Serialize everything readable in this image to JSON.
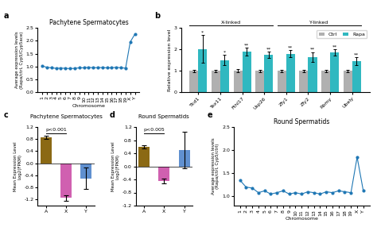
{
  "chart_data": [
    {
      "type": "line",
      "panel_label": "a",
      "title": "Pachytene Spermatocytes",
      "xlabel": "Chromosome",
      "ylabel": "Average expression levels\n(Rapa/ctrl, Cyp5/Cyp5ace)",
      "categories": [
        "1",
        "2",
        "3",
        "4",
        "5",
        "6",
        "7",
        "8",
        "9",
        "10",
        "11",
        "12",
        "13",
        "14",
        "15",
        "16",
        "17",
        "18",
        "19",
        "X",
        "Y"
      ],
      "values": [
        1.02,
        0.97,
        0.95,
        0.93,
        0.94,
        0.93,
        0.92,
        0.93,
        0.95,
        0.95,
        0.97,
        0.95,
        0.96,
        0.96,
        0.95,
        0.95,
        0.97,
        0.95,
        0.94,
        1.95,
        2.25
      ],
      "marker": "o",
      "ylim": [
        0.0,
        2.5
      ],
      "yticks": [
        {
          "value": 0.0,
          "label": "0.0"
        },
        0.5,
        {
          "value": 1.0,
          "label": "1.0"
        },
        1.5,
        {
          "value": 2.0,
          "label": "2.0"
        },
        2.5
      ]
    },
    {
      "type": "bar",
      "panel_label": "b",
      "ylabel": "Relative expression level",
      "categories": [
        "Tkd1",
        "Tex11",
        "Fthl17",
        "Usp26",
        "Zfy1",
        "Zfy2",
        "Rbmy",
        "Ubely"
      ],
      "series": [
        {
          "name": "Ctrl",
          "color": "#b0b0b0",
          "values": [
            1.0,
            1.0,
            1.0,
            1.0,
            1.0,
            1.0,
            1.0,
            1.0
          ],
          "errors": [
            0.05,
            0.05,
            0.07,
            0.05,
            0.05,
            0.05,
            0.05,
            0.05
          ]
        },
        {
          "name": "Rapa",
          "color": "#30b8c0",
          "values": [
            2.02,
            1.5,
            1.9,
            1.75,
            1.8,
            1.65,
            1.85,
            1.45
          ],
          "errors": [
            0.65,
            0.25,
            0.18,
            0.15,
            0.15,
            0.22,
            0.15,
            0.18
          ],
          "significance": [
            "*",
            "*",
            "**",
            "**",
            "**",
            "**",
            "**",
            "**"
          ]
        }
      ],
      "groups": [
        {
          "label": "X-linked",
          "categories": [
            "Tkd1",
            "Tex11",
            "Fthl17",
            "Usp26"
          ]
        },
        {
          "label": "Y-linked",
          "categories": [
            "Zfy1",
            "Zfy2",
            "Rbmy",
            "Ubely"
          ]
        }
      ],
      "legend": "upper right",
      "ylim": [
        0,
        3.0
      ],
      "yticks": [
        0,
        1,
        2,
        3
      ]
    },
    {
      "type": "bar",
      "panel_label": "c",
      "title": "Pachytene Spermatocytes",
      "ylabel": "Mean Expression Level\nLog2(FPKM)",
      "categories": [
        "A",
        "X",
        "Y"
      ],
      "values": [
        0.85,
        -1.15,
        -0.5
      ],
      "errors": [
        0.05,
        0.1,
        0.35
      ],
      "colors": [
        "#8B6914",
        "#d060b0",
        "#6090d0"
      ],
      "comparisons": [
        {
          "categories": [
            "A",
            "X"
          ],
          "label": "p<0.001"
        }
      ],
      "ylim": [
        -1.4,
        1.2
      ],
      "yticks": [
        -1.2,
        -0.8,
        -0.4,
        {
          "value": 0.0,
          "label": "0.0"
        },
        0.4,
        0.8,
        1.2
      ]
    },
    {
      "type": "bar",
      "panel_label": "d",
      "title": "Round Spermatids",
      "ylabel": "Mean Expression Level\nLog2(FPKM)",
      "categories": [
        "A",
        "X",
        "Y"
      ],
      "values": [
        0.6,
        -0.45,
        0.5
      ],
      "errors": [
        0.05,
        0.08,
        0.55
      ],
      "colors": [
        "#8B6914",
        "#d060b0",
        "#6090d0"
      ],
      "comparisons": [
        {
          "categories": [
            "A",
            "X"
          ],
          "label": "p<0.005"
        }
      ],
      "ylim": [
        -1.2,
        1.2
      ],
      "yticks": [
        -1.2,
        -0.8,
        -0.4,
        {
          "value": 0.0,
          "label": "0.0"
        },
        0.4,
        0.8,
        1.2
      ]
    },
    {
      "type": "line",
      "panel_label": "e",
      "title": "Round Spermatids",
      "xlabel": "Chromosome",
      "ylabel": "Average expression levels\n(Rapa/ctrl, Cyp5/ctrl)",
      "categories": [
        "1",
        "2",
        "3",
        "4",
        "5",
        "6",
        "7",
        "8",
        "9",
        "10",
        "11",
        "12",
        "13",
        "14",
        "15",
        "16",
        "17",
        "18",
        "19",
        "X",
        "Y"
      ],
      "values": [
        1.35,
        1.2,
        1.18,
        1.08,
        1.12,
        1.05,
        1.08,
        1.12,
        1.05,
        1.08,
        1.05,
        1.1,
        1.08,
        1.05,
        1.1,
        1.08,
        1.12,
        1.1,
        1.08,
        1.85,
        1.12
      ],
      "marker": "o",
      "ylim": [
        0.8,
        2.5
      ],
      "yticks": [
        {
          "value": 1.0,
          "label": "1.0"
        },
        1.5,
        {
          "value": 2.0,
          "label": "2.0"
        },
        2.5
      ]
    }
  ]
}
